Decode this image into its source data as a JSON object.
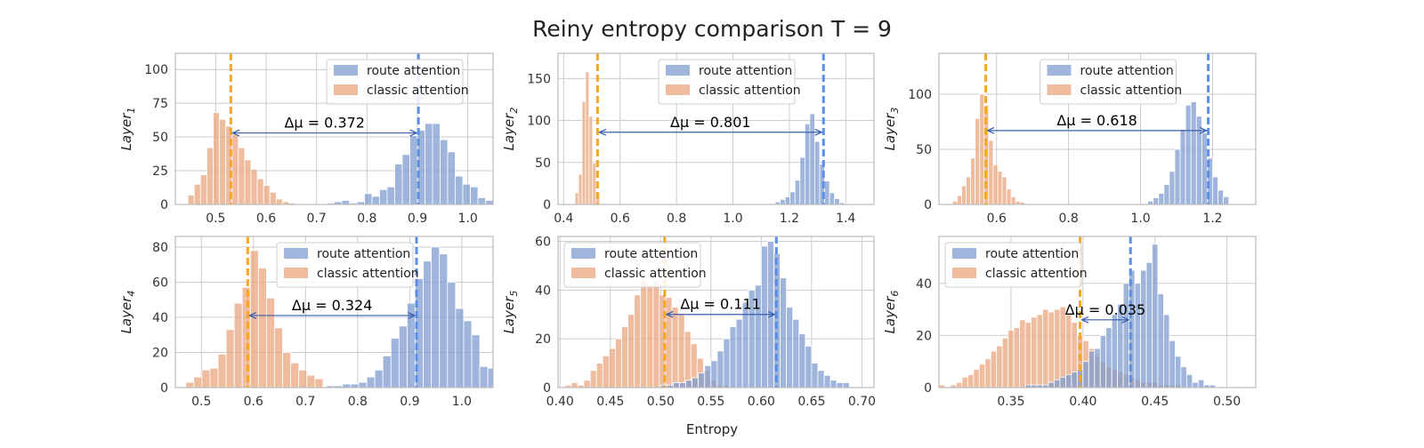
{
  "figure": {
    "title": "Reiny entropy comparison T = 9",
    "xlabel": "Entropy"
  },
  "colors": {
    "route": "#7f9ccf",
    "classic": "#eba57f",
    "route_mean": "#5b8ee6",
    "classic_mean": "#f5a623",
    "arrow": "#3a5fb0",
    "grid": "#cccccc",
    "frame": "#bbbbbb"
  },
  "chart_data": [
    {
      "type": "histogram",
      "ylabel_base": "Layer",
      "ylabel_sub": "1",
      "xlim": [
        0.42,
        1.05
      ],
      "ylim": [
        0,
        112
      ],
      "xticks": [
        0.5,
        0.6,
        0.7,
        0.8,
        0.9,
        1.0
      ],
      "xtick_labels": [
        "0.5",
        "0.6",
        "0.7",
        "0.8",
        "0.9",
        "1.0"
      ],
      "yticks": [
        0,
        25,
        50,
        75,
        100
      ],
      "ytick_labels": [
        "0",
        "25",
        "50",
        "75",
        "100"
      ],
      "legend": "top-right",
      "series": [
        {
          "name": "route attention",
          "bins_start": 0.72,
          "bin_width": 0.015,
          "counts": [
            1,
            2,
            3,
            1,
            2,
            8,
            6,
            11,
            13,
            30,
            37,
            51,
            55,
            60,
            60,
            48,
            39,
            21,
            15,
            13,
            5,
            3
          ]
        },
        {
          "name": "classic attention",
          "bins_start": 0.445,
          "bin_width": 0.0125,
          "counts": [
            7,
            15,
            22,
            42,
            68,
            63,
            58,
            52,
            42,
            33,
            26,
            19,
            14,
            9,
            4,
            2,
            1
          ]
        }
      ],
      "means": {
        "route": 0.902,
        "classic": 0.53
      },
      "delta_label": "Δμ = 0.372",
      "arrow_y": 53
    },
    {
      "type": "histogram",
      "ylabel_base": "Layer",
      "ylabel_sub": "2",
      "xlim": [
        0.38,
        1.5
      ],
      "ylim": [
        0,
        180
      ],
      "xticks": [
        0.4,
        0.6,
        0.8,
        1.0,
        1.2,
        1.4
      ],
      "xtick_labels": [
        "0.4",
        "0.6",
        "0.8",
        "1.0",
        "1.2",
        "1.4"
      ],
      "yticks": [
        0,
        50,
        100,
        150
      ],
      "ytick_labels": [
        "0",
        "50",
        "100",
        "150"
      ],
      "legend": "top-center",
      "series": [
        {
          "name": "route attention",
          "bins_start": 1.15,
          "bin_width": 0.0175,
          "counts": [
            3,
            6,
            9,
            15,
            29,
            56,
            96,
            108,
            75,
            48,
            28,
            14,
            7,
            2,
            1
          ]
        },
        {
          "name": "classic attention",
          "bins_start": 0.44,
          "bin_width": 0.0125,
          "counts": [
            14,
            36,
            123,
            158,
            105,
            49,
            13
          ]
        }
      ],
      "means": {
        "route": 1.321,
        "classic": 0.52
      },
      "delta_label": "Δμ = 0.801",
      "arrow_y": 86
    },
    {
      "type": "histogram",
      "ylabel_base": "Layer",
      "ylabel_sub": "3",
      "xlim": [
        0.44,
        1.32
      ],
      "ylim": [
        0,
        137
      ],
      "xticks": [
        0.6,
        0.8,
        1.0,
        1.2
      ],
      "xtick_labels": [
        "0.6",
        "0.8",
        "1.0",
        "1.2"
      ],
      "yticks": [
        0,
        50,
        100
      ],
      "ytick_labels": [
        "0",
        "50",
        "100"
      ],
      "legend": "top-center",
      "series": [
        {
          "name": "route attention",
          "bins_start": 1.02,
          "bin_width": 0.015,
          "counts": [
            3,
            6,
            10,
            18,
            30,
            50,
            68,
            90,
            93,
            80,
            65,
            42,
            25,
            13,
            7
          ]
        },
        {
          "name": "classic attention",
          "bins_start": 0.478,
          "bin_width": 0.0125,
          "counts": [
            3,
            8,
            17,
            25,
            42,
            78,
            100,
            90,
            58,
            36,
            30,
            25,
            14,
            7,
            3,
            2
          ]
        }
      ],
      "means": {
        "route": 1.188,
        "classic": 0.57
      },
      "delta_label": "Δμ = 0.618",
      "arrow_y": 67
    },
    {
      "type": "histogram",
      "ylabel_base": "Layer",
      "ylabel_sub": "4",
      "xlim": [
        0.45,
        1.06
      ],
      "ylim": [
        0,
        86
      ],
      "xticks": [
        0.5,
        0.6,
        0.7,
        0.8,
        0.9,
        1.0
      ],
      "xtick_labels": [
        "0.5",
        "0.6",
        "0.7",
        "0.8",
        "0.9",
        "1.0"
      ],
      "yticks": [
        0,
        20,
        40,
        60,
        80
      ],
      "ytick_labels": [
        "0",
        "20",
        "40",
        "60",
        "80"
      ],
      "legend": "top-center",
      "series": [
        {
          "name": "route attention",
          "bins_start": 0.74,
          "bin_width": 0.0155,
          "counts": [
            1,
            1,
            2,
            2,
            3,
            6,
            10,
            18,
            28,
            35,
            48,
            62,
            72,
            80,
            76,
            60,
            45,
            38,
            30,
            12,
            11,
            4,
            2,
            1
          ]
        },
        {
          "name": "classic attention",
          "bins_start": 0.47,
          "bin_width": 0.0155,
          "counts": [
            3,
            6,
            10,
            11,
            19,
            33,
            48,
            57,
            78,
            68,
            51,
            34,
            20,
            14,
            10,
            7,
            5
          ]
        }
      ],
      "means": {
        "route": 0.913,
        "classic": 0.589
      },
      "delta_label": "Δμ = 0.324",
      "arrow_y": 41
    },
    {
      "type": "histogram",
      "ylabel_base": "Layer",
      "ylabel_sub": "5",
      "xlim": [
        0.398,
        0.712
      ],
      "ylim": [
        0,
        62
      ],
      "xticks": [
        0.4,
        0.45,
        0.5,
        0.55,
        0.6,
        0.65,
        0.7
      ],
      "xtick_labels": [
        "0.40",
        "0.45",
        "0.50",
        "0.55",
        "0.60",
        "0.65",
        "0.70"
      ],
      "yticks": [
        0,
        20,
        40,
        60
      ],
      "ytick_labels": [
        "0",
        "20",
        "40",
        "60"
      ],
      "legend": "top-left",
      "series": [
        {
          "name": "route attention",
          "bins_start": 0.5,
          "bin_width": 0.00625,
          "counts": [
            1,
            1,
            2,
            2,
            3,
            4,
            6,
            9,
            11,
            15,
            20,
            25,
            28,
            35,
            40,
            42,
            58,
            60,
            55,
            45,
            33,
            28,
            22,
            17,
            10,
            7,
            5,
            3,
            2,
            2
          ]
        },
        {
          "name": "classic attention",
          "bins_start": 0.405,
          "bin_width": 0.00625,
          "counts": [
            1,
            2,
            1,
            3,
            7,
            10,
            13,
            16,
            20,
            25,
            30,
            38,
            44,
            42,
            44,
            38,
            37,
            33,
            30,
            23,
            18,
            12,
            7,
            3,
            1,
            1
          ]
        }
      ],
      "means": {
        "route": 0.615,
        "classic": 0.504
      },
      "delta_label": "Δμ = 0.111",
      "arrow_y": 30
    },
    {
      "type": "histogram",
      "ylabel_base": "Layer",
      "ylabel_sub": "6",
      "xlim": [
        0.3,
        0.52
      ],
      "ylim": [
        0,
        58
      ],
      "xticks": [
        0.35,
        0.4,
        0.45,
        0.5
      ],
      "xtick_labels": [
        "0.35",
        "0.40",
        "0.45",
        "0.50"
      ],
      "yticks": [
        0,
        20,
        40
      ],
      "ytick_labels": [
        "0",
        "20",
        "40"
      ],
      "legend": "top-left",
      "series": [
        {
          "name": "route attention",
          "bins_start": 0.36,
          "bin_width": 0.004,
          "counts": [
            1,
            1,
            1,
            1,
            2,
            3,
            4,
            5,
            6,
            7,
            10,
            14,
            15,
            20,
            23,
            28,
            32,
            40,
            45,
            40,
            45,
            48,
            55,
            36,
            28,
            18,
            12,
            8,
            5,
            2,
            3,
            1,
            1
          ]
        },
        {
          "name": "classic attention",
          "bins_start": 0.3,
          "bin_width": 0.004,
          "counts": [
            1,
            0,
            1,
            2,
            4,
            5,
            7,
            9,
            11,
            14,
            16,
            19,
            22,
            23,
            26,
            25,
            27,
            28,
            30,
            29,
            30,
            31,
            28,
            25,
            20,
            18,
            15,
            12,
            10,
            8,
            7,
            6,
            5,
            4,
            3,
            2,
            2,
            2,
            1,
            1,
            1,
            1
          ]
        }
      ],
      "means": {
        "route": 0.433,
        "classic": 0.398
      },
      "delta_label": "Δμ = 0.035",
      "arrow_y": 26
    }
  ]
}
